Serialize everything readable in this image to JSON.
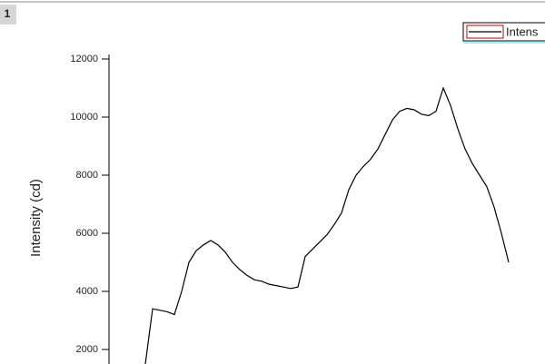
{
  "tab": "1",
  "chart_data": {
    "type": "line",
    "ylabel": "Intensity (cd)",
    "categories": [
      null,
      null,
      null,
      null,
      null,
      null,
      null,
      null,
      null,
      null,
      null,
      null,
      null,
      null,
      null,
      null,
      null,
      null,
      null,
      null,
      null,
      null,
      null,
      null,
      null,
      null,
      null,
      null,
      null,
      null,
      null,
      null,
      null,
      null,
      null,
      null,
      null,
      null,
      null,
      null,
      null,
      null,
      null,
      null,
      null,
      null,
      null,
      null,
      null,
      null,
      null
    ],
    "series": [
      {
        "name": "Intens",
        "color": "#000000",
        "values": [
          1500,
          3400,
          3350,
          3300,
          3200,
          4000,
          5000,
          5400,
          5600,
          5750,
          5600,
          5350,
          5000,
          4750,
          4550,
          4400,
          4350,
          4250,
          4200,
          4150,
          4100,
          4150,
          5200,
          5450,
          5700,
          5950,
          6300,
          6700,
          7500,
          8000,
          8300,
          8550,
          8900,
          9400,
          9900,
          10200,
          10300,
          10250,
          10100,
          10050,
          10200,
          11000,
          10400,
          9600,
          8900,
          8400,
          8000,
          7600,
          6900,
          6000,
          5000
        ]
      }
    ],
    "ylim": [
      1500,
      12000
    ],
    "yticks": [
      2000,
      4000,
      6000,
      8000,
      10000,
      12000
    ]
  }
}
